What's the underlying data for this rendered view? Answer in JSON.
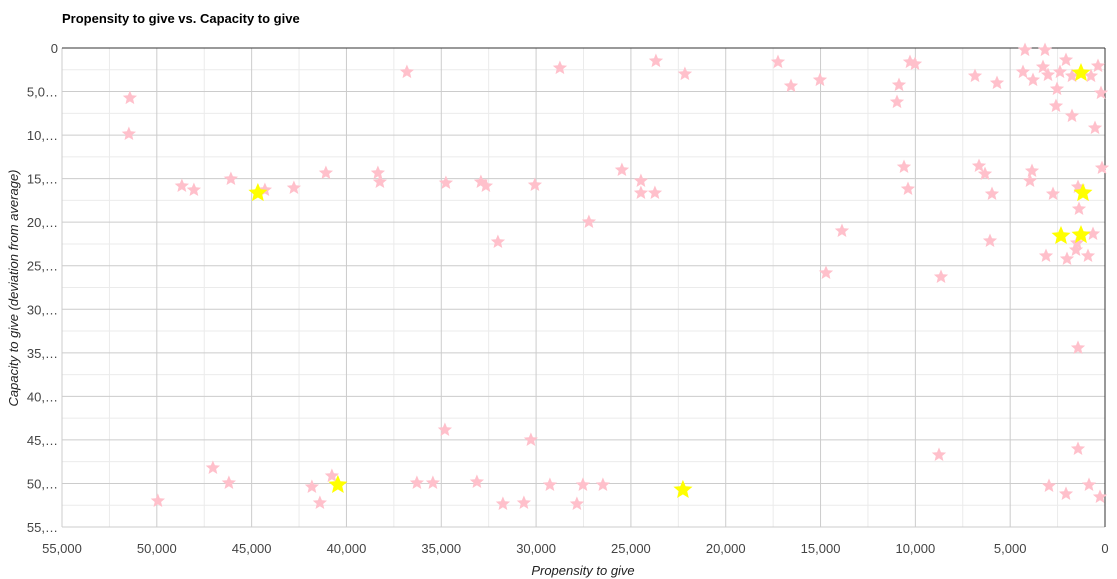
{
  "chart_data": {
    "type": "scatter",
    "title": "Propensity to give vs. Capacity to give",
    "xlabel": "Propensity to give",
    "ylabel": "Capacity to give (deviation from average)",
    "xlim": [
      55000,
      0
    ],
    "ylim": [
      0,
      55000
    ],
    "x_reversed": true,
    "y_reversed": true,
    "grid": true,
    "x_ticks": [
      55000,
      50000,
      45000,
      40000,
      35000,
      30000,
      25000,
      20000,
      15000,
      10000,
      5000,
      0
    ],
    "x_tick_labels": [
      "55,000",
      "50,000",
      "45,000",
      "40,000",
      "35,000",
      "30,000",
      "25,000",
      "20,000",
      "15,000",
      "10,000",
      "5,000",
      "0"
    ],
    "y_ticks": [
      0,
      5000,
      10000,
      15000,
      20000,
      25000,
      30000,
      35000,
      40000,
      45000,
      50000,
      55000
    ],
    "y_tick_labels": [
      "0",
      "5,0…",
      "10,…",
      "15,…",
      "20,…",
      "25,…",
      "30,…",
      "35,…",
      "40,…",
      "45,…",
      "50,…",
      "55,…"
    ],
    "colors": {
      "pink": "#ffc0cb",
      "yellow": "#ffff00"
    },
    "series": [
      {
        "name": "pink",
        "marker": "star",
        "points": [
          [
            51420,
            5740
          ],
          [
            51474,
            9872
          ],
          [
            48680,
            15842
          ],
          [
            48046,
            16302
          ],
          [
            46095,
            15039
          ],
          [
            44302,
            16302
          ],
          [
            42772,
            16072
          ],
          [
            41084,
            14350
          ],
          [
            38342,
            14350
          ],
          [
            38237,
            15383
          ],
          [
            36813,
            2755
          ],
          [
            34756,
            15498
          ],
          [
            32910,
            15383
          ],
          [
            32646,
            15842
          ],
          [
            30062,
            15728
          ],
          [
            28743,
            2296
          ],
          [
            23680,
            1492
          ],
          [
            22151,
            2985
          ],
          [
            32013,
            22271
          ],
          [
            27214,
            19975
          ],
          [
            25473,
            14006
          ],
          [
            24471,
            15268
          ],
          [
            24471,
            16646
          ],
          [
            23733,
            16646
          ],
          [
            17246,
            1607
          ],
          [
            16560,
            4362
          ],
          [
            15031,
            3674
          ],
          [
            13871,
            21008
          ],
          [
            14714,
            25830
          ],
          [
            10864,
            4248
          ],
          [
            10970,
            6199
          ],
          [
            10284,
            1607
          ],
          [
            10021,
            1837
          ],
          [
            10601,
            13661
          ],
          [
            10390,
            16187
          ],
          [
            8649,
            26289
          ],
          [
            6856,
            3214
          ],
          [
            5696,
            4018
          ],
          [
            6645,
            13546
          ],
          [
            6329,
            14465
          ],
          [
            5960,
            16761
          ],
          [
            6065,
            22156
          ],
          [
            4219,
            230
          ],
          [
            3164,
            230
          ],
          [
            3270,
            2181
          ],
          [
            3797,
            3674
          ],
          [
            4325,
            2755
          ],
          [
            3006,
            3100
          ],
          [
            2373,
            2755
          ],
          [
            2057,
            1378
          ],
          [
            1740,
            3214
          ],
          [
            2584,
            6658
          ],
          [
            2532,
            4707
          ],
          [
            1740,
            7806
          ],
          [
            738,
            3214
          ],
          [
            369,
            2066
          ],
          [
            211,
            5166
          ],
          [
            527,
            9184
          ],
          [
            158,
            13776
          ],
          [
            3850,
            14120
          ],
          [
            3956,
            15268
          ],
          [
            2742,
            16761
          ],
          [
            1424,
            15957
          ],
          [
            1371,
            18483
          ],
          [
            1477,
            22386
          ],
          [
            3112,
            23878
          ],
          [
            2004,
            24223
          ],
          [
            1529,
            23190
          ],
          [
            897,
            23878
          ],
          [
            633,
            21353
          ],
          [
            1424,
            34440
          ],
          [
            1424,
            46035
          ],
          [
            8755,
            46724
          ],
          [
            34808,
            43854
          ],
          [
            30273,
            45002
          ],
          [
            47044,
            48216
          ],
          [
            46200,
            49938
          ],
          [
            49945,
            52004
          ],
          [
            40768,
            49134
          ],
          [
            41823,
            50397
          ],
          [
            41401,
            52234
          ],
          [
            36285,
            49938
          ],
          [
            35441,
            49938
          ],
          [
            33121,
            49823
          ],
          [
            31749,
            52349
          ],
          [
            30642,
            52234
          ],
          [
            29271,
            50168
          ],
          [
            27530,
            50168
          ],
          [
            26475,
            50168
          ],
          [
            27847,
            52349
          ],
          [
            2953,
            50282
          ],
          [
            2057,
            51201
          ],
          [
            844,
            50168
          ],
          [
            264,
            51545
          ]
        ]
      },
      {
        "name": "yellow",
        "marker": "star",
        "points": [
          [
            44671,
            16646
          ],
          [
            40452,
            50168
          ],
          [
            22256,
            50742
          ],
          [
            1266,
            2870
          ],
          [
            1160,
            16646
          ],
          [
            2321,
            21582
          ],
          [
            1266,
            21468
          ]
        ]
      }
    ]
  }
}
